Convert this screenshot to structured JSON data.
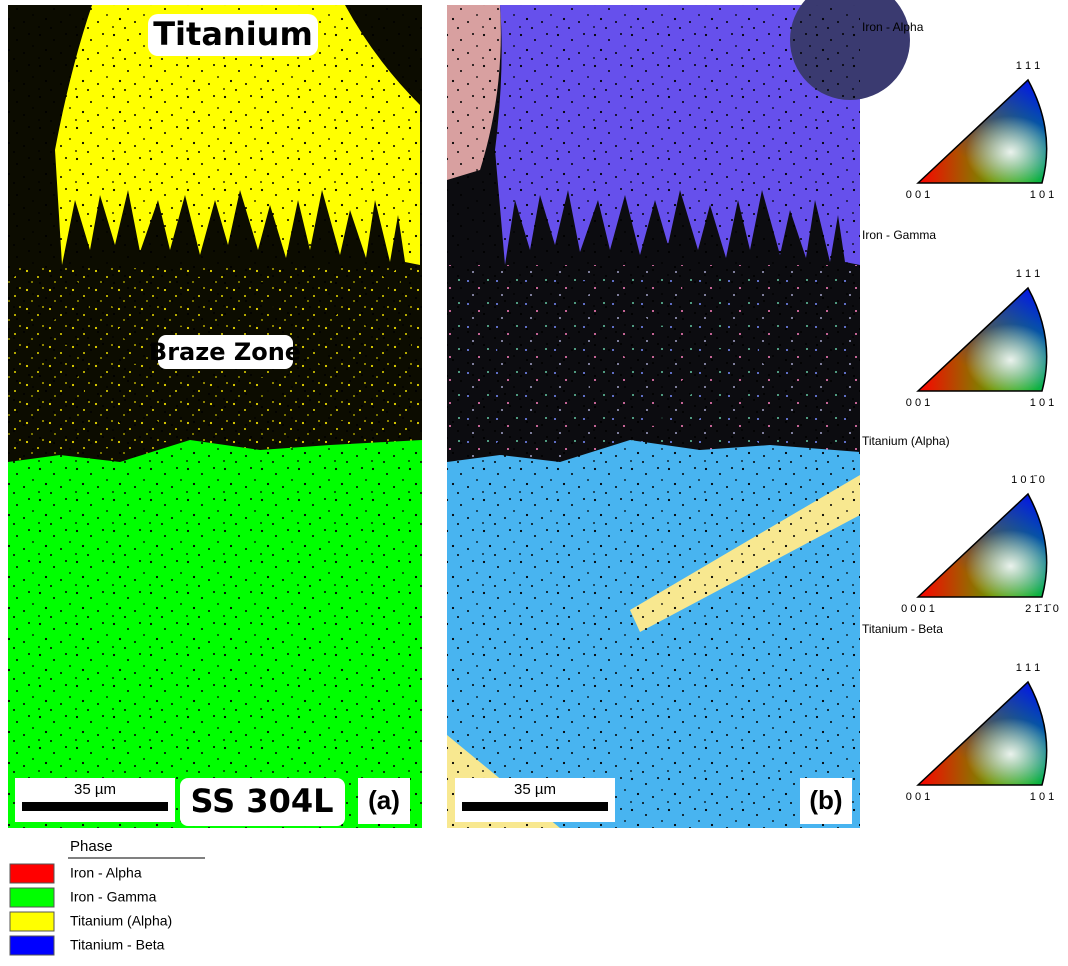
{
  "panel_a": {
    "labels": {
      "top": "Titanium",
      "middle": "Braze Zone",
      "bottom": "SS 304L"
    },
    "scale_bar": "35 µm",
    "tag": "(a)"
  },
  "panel_b": {
    "scale_bar": "35 µm",
    "tag": "(b)"
  },
  "ipf_keys": [
    {
      "title": "Iron - Alpha",
      "top": "1 1 1",
      "left": "0 0 1",
      "right": "1 0 1"
    },
    {
      "title": "Iron - Gamma",
      "top": "1 1 1",
      "left": "0 0 1",
      "right": "1 0 1"
    },
    {
      "title": "Titanium (Alpha)",
      "top": "1 0 1̄ 0",
      "left": "0 0 0 1",
      "right": "2 1̄ 1̄ 0"
    },
    {
      "title": "Titanium - Beta",
      "top": "1 1 1",
      "left": "0 0 1",
      "right": "1 0 1"
    }
  ],
  "phase_legend": {
    "title": "Phase",
    "items": [
      {
        "label": "Iron - Alpha",
        "color": "#ff0000"
      },
      {
        "label": "Iron - Gamma",
        "color": "#00ff00"
      },
      {
        "label": "Titanium (Alpha)",
        "color": "#ffff00"
      },
      {
        "label": "Titanium - Beta",
        "color": "#0000ff"
      }
    ]
  }
}
